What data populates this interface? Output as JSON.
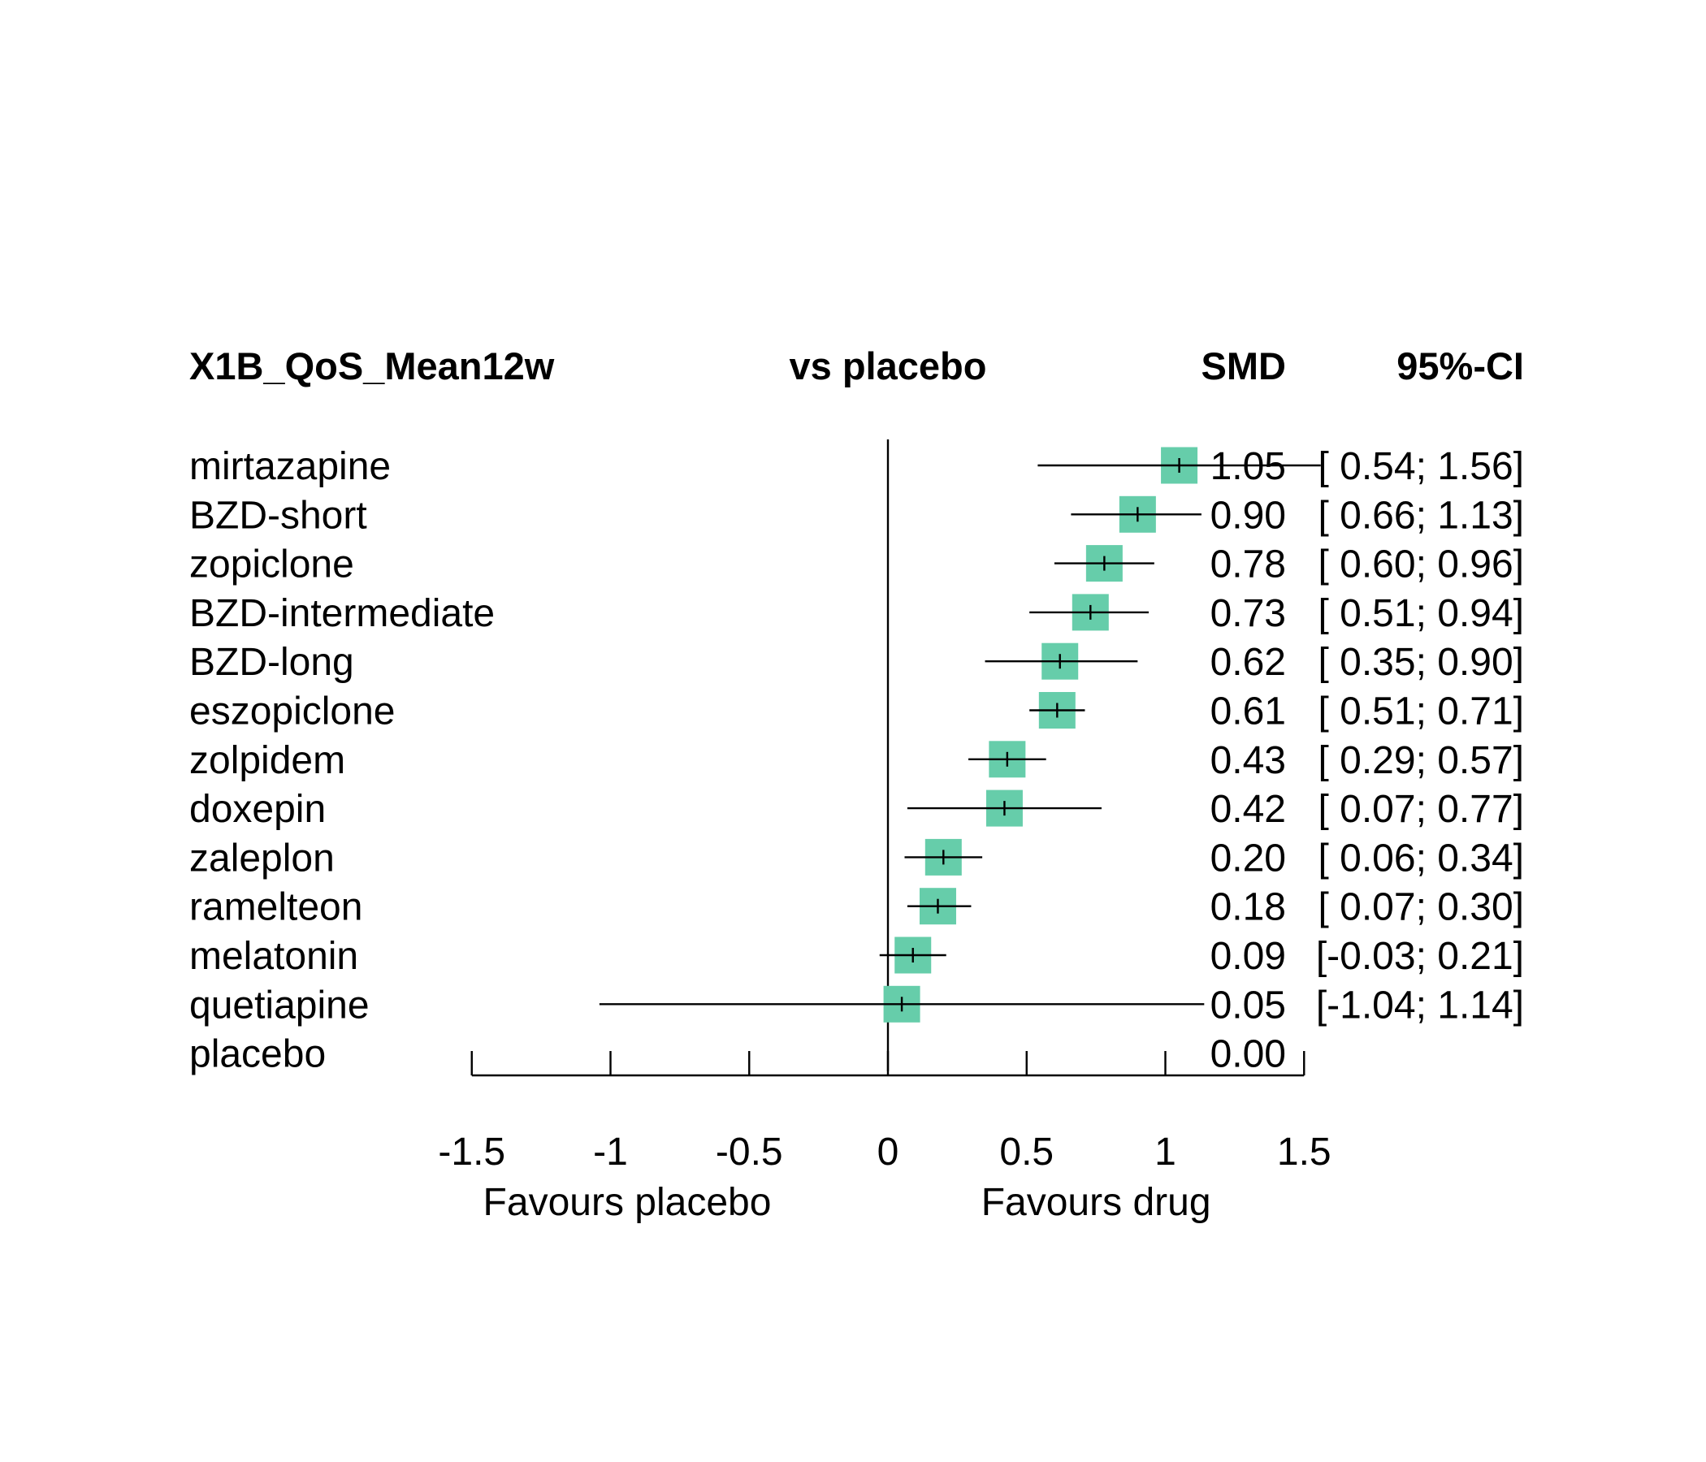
{
  "chart_data": {
    "type": "forest",
    "title": "",
    "header": {
      "outcome": "X1B_QoS_Mean12w",
      "comparison": "vs placebo",
      "effect": "SMD",
      "ci": "95%-CI"
    },
    "rows": [
      {
        "name": "mirtazapine",
        "smd": 1.05,
        "lower": 0.54,
        "upper": 1.56,
        "smd_text": "1.05",
        "ci_text": "[ 0.54; 1.56]"
      },
      {
        "name": "BZD-short",
        "smd": 0.9,
        "lower": 0.66,
        "upper": 1.13,
        "smd_text": "0.90",
        "ci_text": "[ 0.66; 1.13]"
      },
      {
        "name": "zopiclone",
        "smd": 0.78,
        "lower": 0.6,
        "upper": 0.96,
        "smd_text": "0.78",
        "ci_text": "[ 0.60; 0.96]"
      },
      {
        "name": "BZD-intermediate",
        "smd": 0.73,
        "lower": 0.51,
        "upper": 0.94,
        "smd_text": "0.73",
        "ci_text": "[ 0.51; 0.94]"
      },
      {
        "name": "BZD-long",
        "smd": 0.62,
        "lower": 0.35,
        "upper": 0.9,
        "smd_text": "0.62",
        "ci_text": "[ 0.35; 0.90]"
      },
      {
        "name": "eszopiclone",
        "smd": 0.61,
        "lower": 0.51,
        "upper": 0.71,
        "smd_text": "0.61",
        "ci_text": "[ 0.51; 0.71]"
      },
      {
        "name": "zolpidem",
        "smd": 0.43,
        "lower": 0.29,
        "upper": 0.57,
        "smd_text": "0.43",
        "ci_text": "[ 0.29; 0.57]"
      },
      {
        "name": "doxepin",
        "smd": 0.42,
        "lower": 0.07,
        "upper": 0.77,
        "smd_text": "0.42",
        "ci_text": "[ 0.07; 0.77]"
      },
      {
        "name": "zaleplon",
        "smd": 0.2,
        "lower": 0.06,
        "upper": 0.34,
        "smd_text": "0.20",
        "ci_text": "[ 0.06; 0.34]"
      },
      {
        "name": "ramelteon",
        "smd": 0.18,
        "lower": 0.07,
        "upper": 0.3,
        "smd_text": "0.18",
        "ci_text": "[ 0.07; 0.30]"
      },
      {
        "name": "melatonin",
        "smd": 0.09,
        "lower": -0.03,
        "upper": 0.21,
        "smd_text": "0.09",
        "ci_text": "[-0.03; 0.21]"
      },
      {
        "name": "quetiapine",
        "smd": 0.05,
        "lower": -1.04,
        "upper": 1.14,
        "smd_text": "0.05",
        "ci_text": "[-1.04; 1.14]"
      },
      {
        "name": "placebo",
        "smd": 0.0,
        "lower": null,
        "upper": null,
        "smd_text": "0.00",
        "ci_text": ""
      }
    ],
    "x_ticks": [
      -1.5,
      -1,
      -0.5,
      0,
      0.5,
      1,
      1.5
    ],
    "x_tick_labels": [
      "-1.5",
      "-1",
      "-0.5",
      "0",
      "0.5",
      "1",
      "1.5"
    ],
    "xlim": [
      -1.5,
      1.5
    ],
    "reference_line": 0,
    "xlabel_left": "Favours placebo",
    "xlabel_right": "Favours drug",
    "box_color": "#66CDAA",
    "line_color": "#000000",
    "grid": false,
    "legend": "none"
  }
}
